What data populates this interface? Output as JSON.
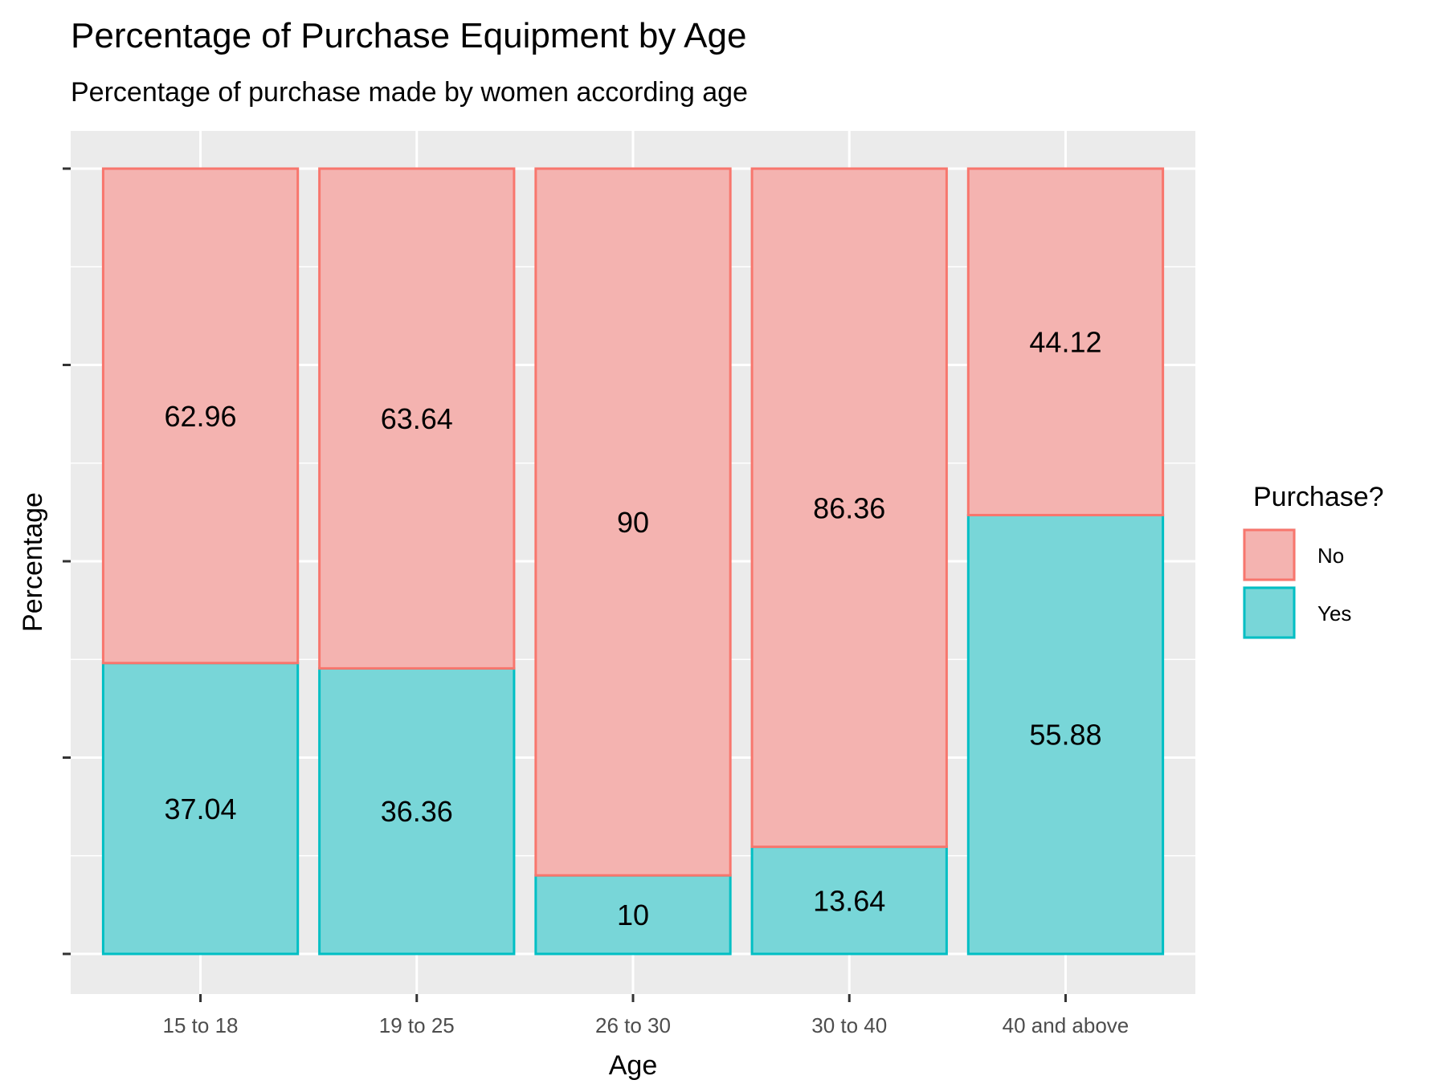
{
  "chart_data": {
    "type": "bar",
    "stacked": true,
    "title": "Percentage of Purchase Equipment by Age",
    "subtitle": "Percentage of purchase made by women according age",
    "xlabel": "Age",
    "ylabel": "Percentage",
    "ylim": [
      0,
      100
    ],
    "y_tick_labels_shown": false,
    "grid": true,
    "legend": {
      "title": "Purchase?",
      "position": "right"
    },
    "categories": [
      "15 to 18",
      "19 to 25",
      "26 to 30",
      "30 to 40",
      "40 and above"
    ],
    "series": [
      {
        "name": "No",
        "values": [
          62.96,
          63.64,
          90,
          86.36,
          44.12
        ],
        "labels": [
          "62.96",
          "63.64",
          "90",
          "86.36",
          "44.12"
        ],
        "fill": "#F4B3B0",
        "stroke": "#F8766D"
      },
      {
        "name": "Yes",
        "values": [
          37.04,
          36.36,
          10,
          13.64,
          55.88
        ],
        "labels": [
          "37.04",
          "36.36",
          "10",
          "13.64",
          "55.88"
        ],
        "fill": "#78D6D8",
        "stroke": "#00BFC4"
      }
    ]
  }
}
